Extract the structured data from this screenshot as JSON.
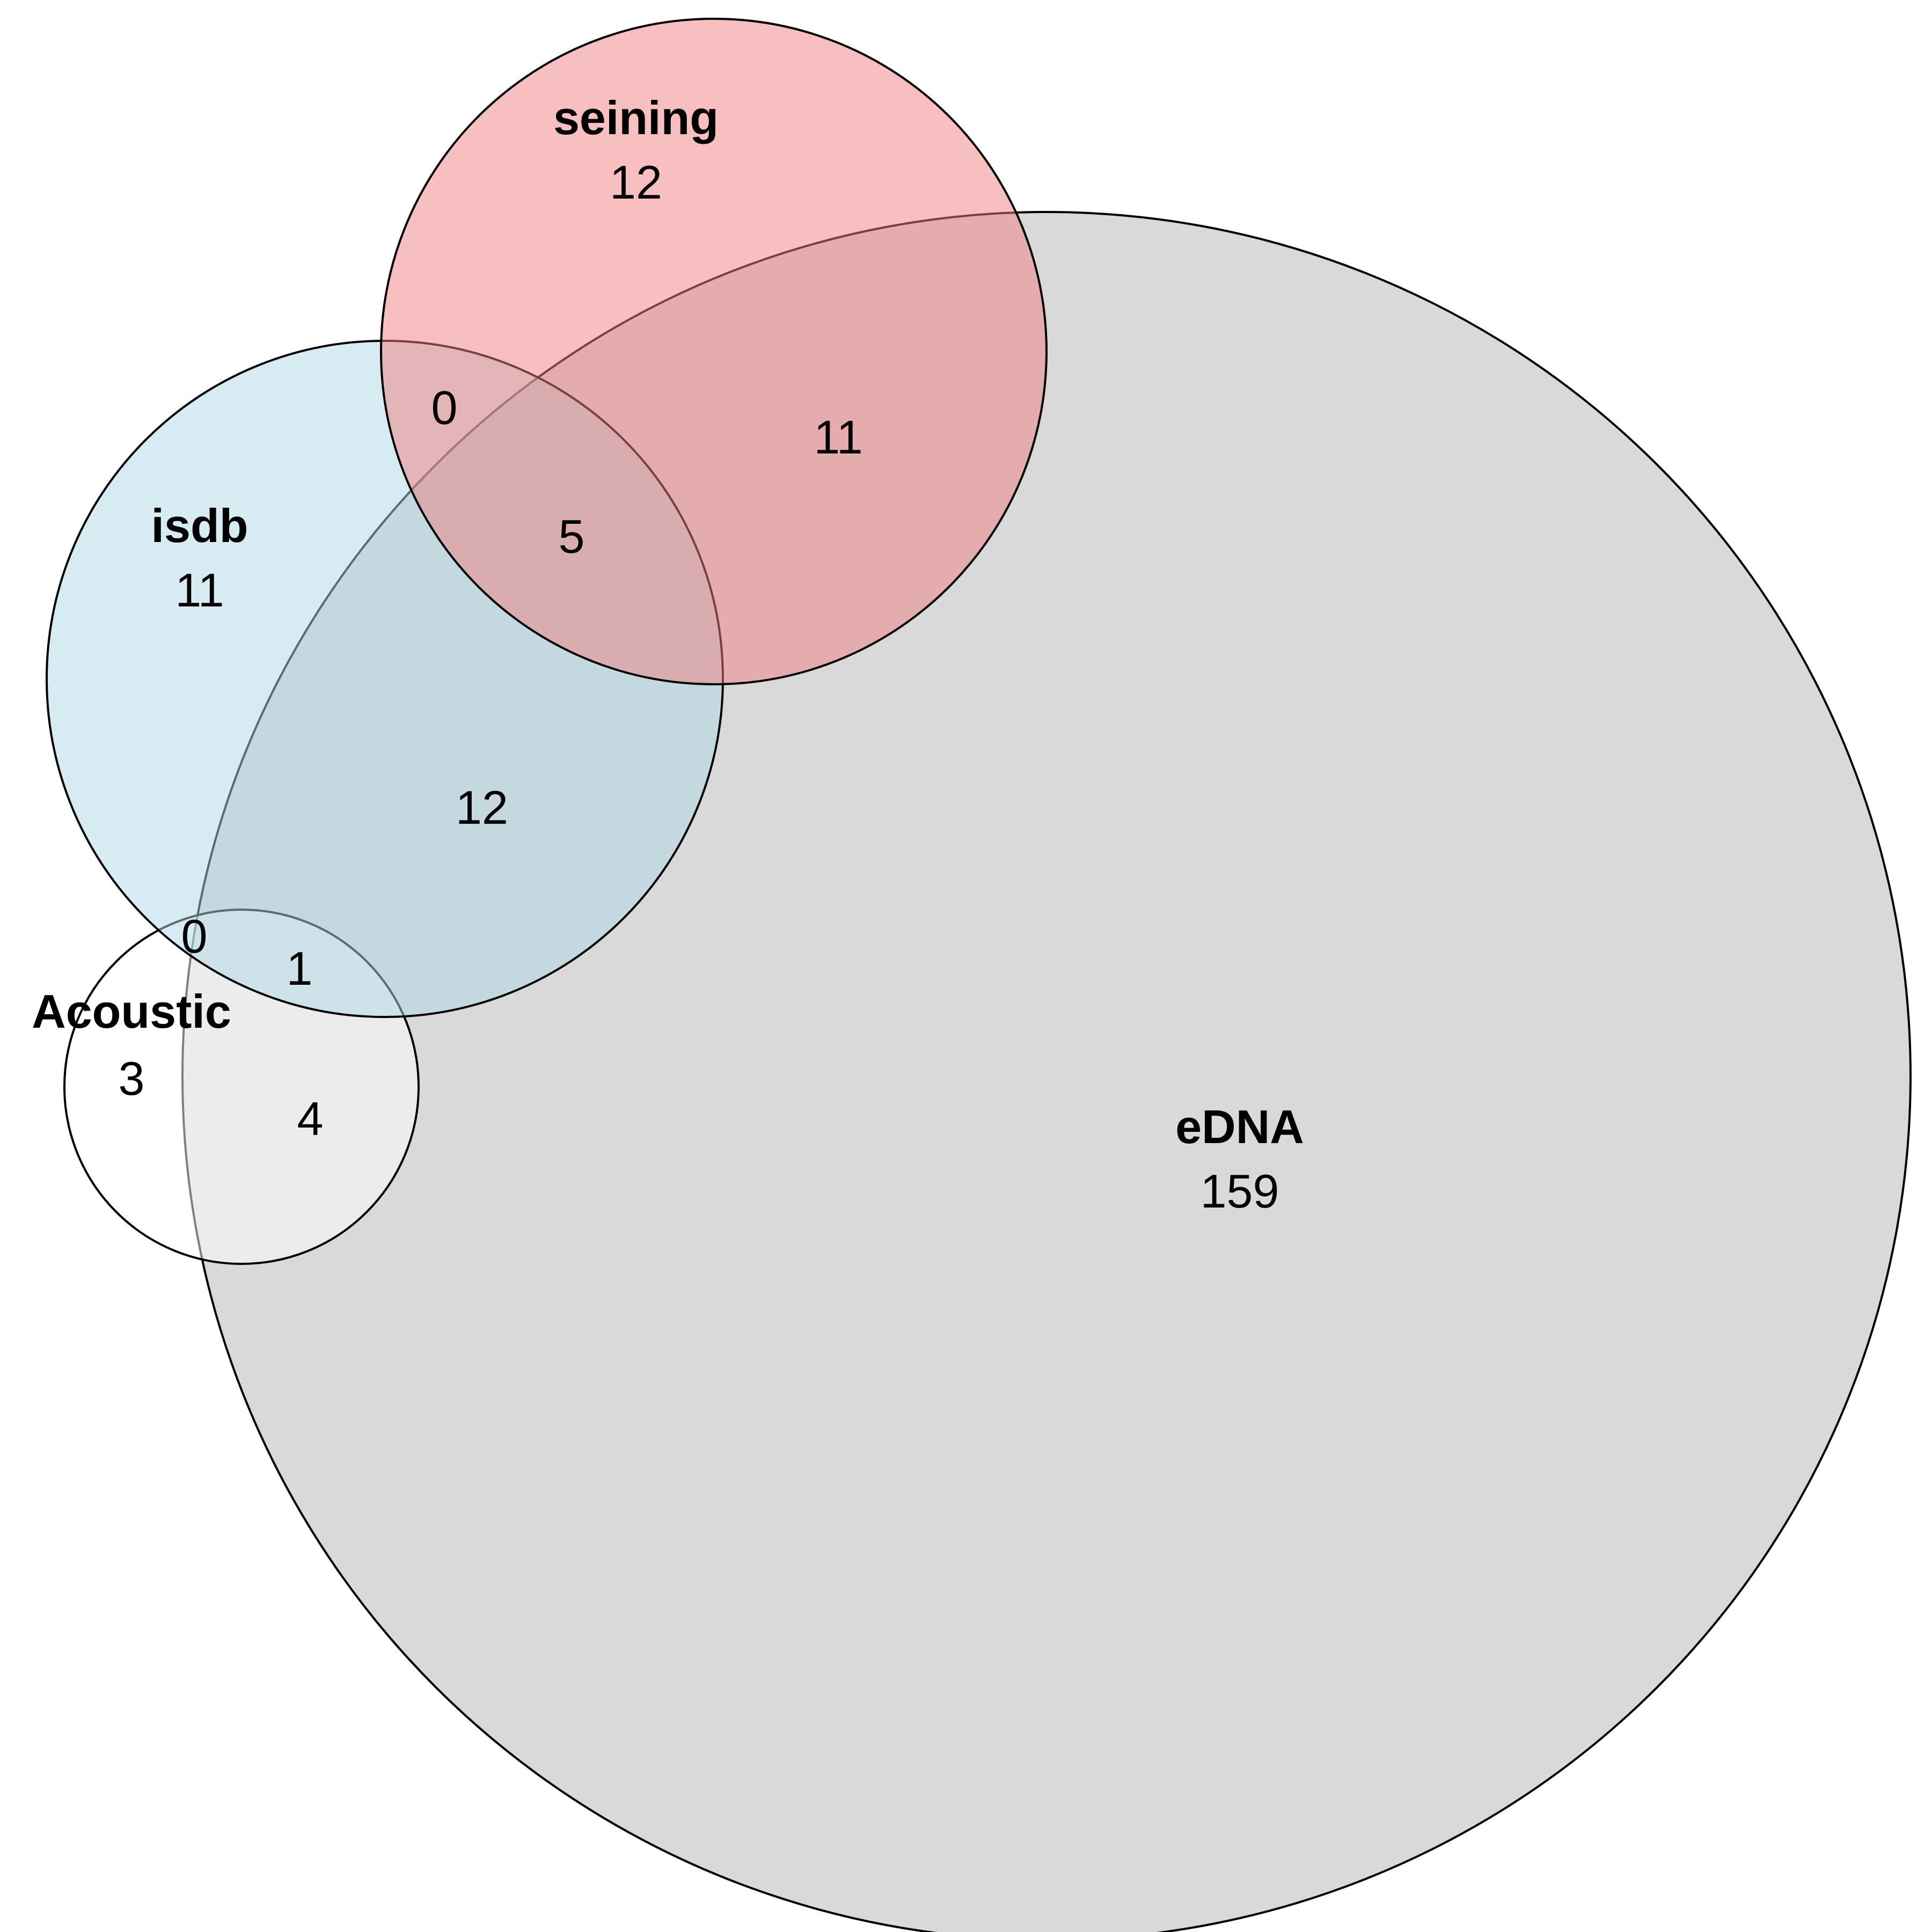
{
  "sets": [
    {
      "key": "edna",
      "name": "eDNA",
      "count": "159",
      "fill": "#d9d9d9"
    },
    {
      "key": "seining",
      "name": "seining",
      "count": "12",
      "fill": "#f08080"
    },
    {
      "key": "isdb",
      "name": "isdb",
      "count": "11",
      "fill": "#add8e6"
    },
    {
      "key": "acoustic",
      "name": "Acoustic",
      "count": "3",
      "fill": "#ffffff"
    }
  ],
  "intersections": {
    "isdb_seining": "0",
    "isdb_seining_edna": "5",
    "seining_edna": "11",
    "isdb_edna": "12",
    "isdb_acoustic": "0",
    "isdb_acoustic_edna": "1",
    "acoustic_edna": "4"
  }
}
